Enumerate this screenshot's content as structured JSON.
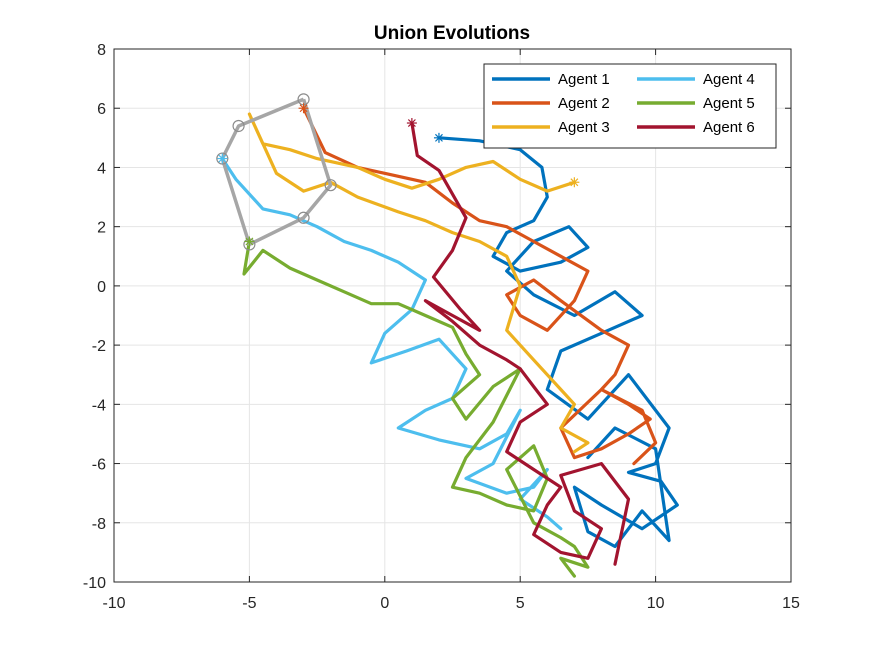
{
  "chart_data": {
    "type": "line",
    "title": "Union Evolutions",
    "xlabel": "",
    "ylabel": "",
    "xlim": [
      -10,
      15
    ],
    "ylim": [
      -10,
      8
    ],
    "xticks": [
      -10,
      -5,
      0,
      5,
      10,
      15
    ],
    "yticks": [
      -10,
      -8,
      -6,
      -4,
      -2,
      0,
      2,
      4,
      6,
      8
    ],
    "grid": true,
    "legend": {
      "placement": "top-right",
      "columns": 2
    },
    "series": [
      {
        "name": "Agent 1",
        "color": "#0072BD",
        "start_marker": [
          2.0,
          5.0
        ],
        "x": [
          2.0,
          3.5,
          5.0,
          5.8,
          6.0,
          5.5,
          4.5,
          4.0,
          5.0,
          6.5,
          7.5,
          6.8,
          5.5,
          4.5,
          5.5,
          7.0,
          8.5,
          9.5,
          8.0,
          6.5,
          6.0,
          7.5,
          9.0,
          10.5,
          10.0,
          9.0,
          10.2,
          10.8,
          9.5,
          8.0,
          7.0,
          7.5,
          8.5,
          9.5,
          10.5,
          10.0,
          8.5,
          7.5
        ],
        "y": [
          5.0,
          4.9,
          4.6,
          4.0,
          3.0,
          2.2,
          1.8,
          1.0,
          0.5,
          0.8,
          1.3,
          2.0,
          1.5,
          0.5,
          -0.3,
          -1.0,
          -0.2,
          -1.0,
          -1.6,
          -2.2,
          -3.5,
          -4.5,
          -3.0,
          -4.8,
          -6.0,
          -6.3,
          -6.6,
          -7.4,
          -8.2,
          -7.4,
          -6.8,
          -8.3,
          -8.8,
          -7.6,
          -8.6,
          -5.5,
          -4.8,
          -5.8
        ]
      },
      {
        "name": "Agent 2",
        "color": "#D95319",
        "start_marker": [
          -3.0,
          6.0
        ],
        "x": [
          -3.0,
          -2.2,
          -1.0,
          0.5,
          1.5,
          2.5,
          3.5,
          4.5,
          5.5,
          6.5,
          7.5,
          7.0,
          6.0,
          5.0,
          4.5,
          5.5,
          6.5,
          8.0,
          9.0,
          8.5,
          8.0,
          9.0,
          9.8,
          9.0,
          8.0,
          7.0,
          6.5,
          8.0,
          9.5,
          10.0,
          9.2
        ],
        "y": [
          6.0,
          4.5,
          4.0,
          3.7,
          3.5,
          2.8,
          2.2,
          2.0,
          1.5,
          1.0,
          0.5,
          -0.5,
          -1.5,
          -1.0,
          -0.3,
          0.2,
          -0.5,
          -1.5,
          -2.0,
          -3.0,
          -3.5,
          -4.0,
          -4.5,
          -5.0,
          -5.5,
          -5.8,
          -4.8,
          -3.5,
          -4.2,
          -5.3,
          -6.0
        ]
      },
      {
        "name": "Agent 3",
        "color": "#EDB120",
        "start_marker": [
          7.0,
          3.5
        ],
        "x": [
          7.0,
          6.0,
          5.0,
          4.0,
          3.0,
          2.0,
          1.0,
          0.0,
          -1.0,
          -2.5,
          -3.5,
          -4.5,
          -5.0,
          -4.0,
          -3.0,
          -2.0,
          -1.0,
          0.5,
          1.5,
          2.5,
          3.5,
          4.5,
          5.0,
          4.5,
          5.5,
          6.5,
          7.0,
          6.5,
          7.5,
          7.0
        ],
        "y": [
          3.5,
          3.2,
          3.6,
          4.2,
          4.0,
          3.6,
          3.3,
          3.6,
          4.0,
          4.3,
          4.6,
          4.8,
          5.8,
          3.8,
          3.2,
          3.5,
          3.0,
          2.5,
          2.2,
          1.8,
          1.5,
          1.0,
          0.0,
          -1.5,
          -2.5,
          -3.5,
          -4.0,
          -4.8,
          -5.3,
          -5.6
        ]
      },
      {
        "name": "Agent 4",
        "color": "#4DBEEE",
        "start_marker": [
          -6.0,
          4.3
        ],
        "x": [
          -6.0,
          -5.5,
          -4.5,
          -3.5,
          -2.5,
          -1.5,
          -0.5,
          0.5,
          1.5,
          1.0,
          0.0,
          -0.5,
          0.8,
          2.0,
          3.0,
          2.5,
          1.5,
          0.5,
          2.0,
          3.5,
          4.5,
          5.0,
          4.0,
          3.0,
          4.5,
          5.5,
          6.0,
          5.0,
          6.0,
          6.5
        ],
        "y": [
          4.3,
          3.6,
          2.6,
          2.4,
          2.0,
          1.5,
          1.2,
          0.8,
          0.2,
          -0.8,
          -1.6,
          -2.6,
          -2.2,
          -1.8,
          -2.8,
          -3.8,
          -4.2,
          -4.8,
          -5.2,
          -5.5,
          -5.0,
          -4.2,
          -6.0,
          -6.5,
          -7.0,
          -6.8,
          -6.2,
          -7.2,
          -7.8,
          -8.2
        ]
      },
      {
        "name": "Agent 5",
        "color": "#77AC30",
        "start_marker": [
          -5.0,
          1.5
        ],
        "x": [
          -5.0,
          -5.2,
          -4.5,
          -3.5,
          -2.5,
          -1.5,
          -0.5,
          0.5,
          1.5,
          2.5,
          3.0,
          3.5,
          2.5,
          3.0,
          4.0,
          5.0,
          4.0,
          3.0,
          2.5,
          3.5,
          4.5,
          5.5,
          6.0,
          5.5,
          4.5,
          5.5,
          6.5,
          7.0,
          7.5,
          6.5,
          7.0
        ],
        "y": [
          1.5,
          0.4,
          1.2,
          0.6,
          0.2,
          -0.2,
          -0.6,
          -0.6,
          -1.0,
          -1.4,
          -2.3,
          -3.0,
          -3.8,
          -4.5,
          -3.4,
          -2.8,
          -4.6,
          -5.8,
          -6.8,
          -7.0,
          -7.4,
          -7.6,
          -6.5,
          -5.4,
          -6.2,
          -8.0,
          -8.5,
          -8.8,
          -9.5,
          -9.2,
          -9.8
        ]
      },
      {
        "name": "Agent 6",
        "color": "#A2142F",
        "start_marker": [
          1.0,
          5.5
        ],
        "x": [
          1.0,
          1.2,
          2.0,
          3.0,
          2.5,
          1.8,
          2.8,
          3.5,
          2.5,
          1.5,
          2.5,
          3.5,
          4.5,
          5.0,
          5.5,
          6.0,
          5.0,
          4.5,
          5.5,
          6.5,
          6.0,
          5.5,
          6.5,
          7.5,
          8.0,
          7.0,
          6.5,
          8.0,
          9.0,
          8.5
        ],
        "y": [
          5.5,
          4.4,
          3.9,
          2.3,
          1.2,
          0.3,
          -0.8,
          -1.5,
          -1.0,
          -0.5,
          -1.2,
          -2.0,
          -2.5,
          -2.8,
          -3.4,
          -4.0,
          -4.6,
          -5.6,
          -6.2,
          -6.8,
          -7.4,
          -8.4,
          -9.0,
          -9.2,
          -8.2,
          -7.6,
          -6.4,
          -6.0,
          -7.2,
          -9.4
        ]
      }
    ],
    "union_polygon": {
      "color": "#A6A6A6",
      "vertices": [
        [
          -3.0,
          6.3
        ],
        [
          -2.0,
          3.4
        ],
        [
          -3.0,
          2.3
        ],
        [
          -5.0,
          1.4
        ],
        [
          -6.0,
          4.3
        ],
        [
          -5.4,
          5.4
        ],
        [
          -3.0,
          6.3
        ]
      ]
    },
    "start_markers": {
      "symbol": "*"
    }
  }
}
